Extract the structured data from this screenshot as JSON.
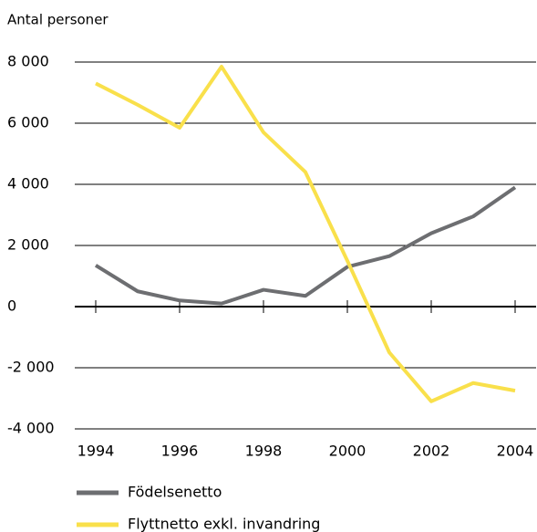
{
  "chart_data": {
    "type": "line",
    "ylabel": "Antal personer",
    "x": [
      1994,
      1995,
      1996,
      1997,
      1998,
      1999,
      2000,
      2001,
      2002,
      2003,
      2004
    ],
    "series": [
      {
        "name": "Födelsenetto",
        "color": "#6d6e71",
        "values": [
          1350,
          500,
          200,
          100,
          550,
          350,
          1300,
          1650,
          2400,
          2950,
          3900
        ]
      },
      {
        "name": "Flyttnetto exkl. invandring",
        "color": "#f9e04b",
        "values": [
          7300,
          6600,
          5850,
          7850,
          5700,
          4400,
          1500,
          -1500,
          -3100,
          -2500,
          -2750
        ]
      }
    ],
    "xlim": [
      1993.5,
      2004.5
    ],
    "xticks": [
      1994,
      1996,
      1998,
      2000,
      2002,
      2004
    ],
    "ylim": [
      -4000,
      8000
    ],
    "yticks": [
      {
        "value": -4000,
        "label": "-4 000"
      },
      {
        "value": -2000,
        "label": "-2 000"
      },
      0,
      {
        "value": 2000,
        "label": "2 000"
      },
      {
        "value": 4000,
        "label": "4 000"
      },
      {
        "value": 6000,
        "label": "6 000"
      },
      {
        "value": 8000,
        "label": "8 000"
      }
    ],
    "grid": true
  }
}
